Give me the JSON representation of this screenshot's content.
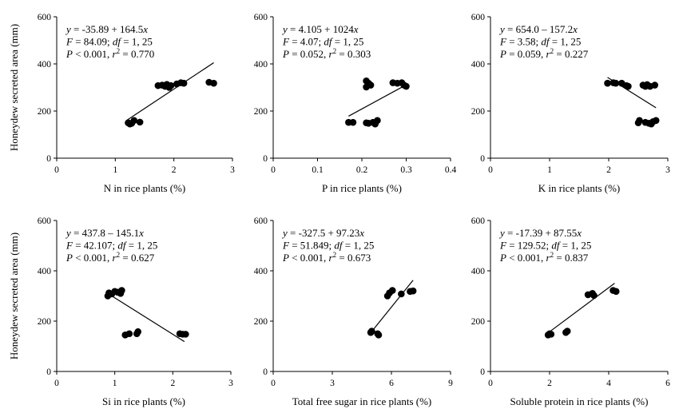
{
  "figure": {
    "ylabel": "Honeydew secreted area (mm)"
  },
  "chart_data": [
    {
      "type": "scatter",
      "xlabel": "N in rice plants (%)",
      "ylabel": "Honeydew secreted area (mm)",
      "xlim": [
        0,
        3
      ],
      "ylim": [
        0,
        600
      ],
      "xticks": [
        "0",
        "1",
        "2",
        "3"
      ],
      "yticks": [
        "0",
        "200",
        "400",
        "600"
      ],
      "annotation": {
        "equation": "-35.89 + 164.5",
        "F": "84.09",
        "df": "1, 25",
        "P": "< 0.001",
        "r2": "0.770"
      },
      "fit": {
        "intercept": -35.89,
        "slope": 164.5,
        "xrange": [
          1.2,
          2.68
        ]
      },
      "points": [
        [
          1.22,
          150
        ],
        [
          1.25,
          145
        ],
        [
          1.28,
          148
        ],
        [
          1.32,
          160
        ],
        [
          1.42,
          153
        ],
        [
          1.73,
          308
        ],
        [
          1.8,
          310
        ],
        [
          1.85,
          305
        ],
        [
          1.88,
          313
        ],
        [
          1.92,
          300
        ],
        [
          1.95,
          308
        ],
        [
          2.05,
          315
        ],
        [
          2.12,
          320
        ],
        [
          2.17,
          318
        ],
        [
          2.6,
          322
        ],
        [
          2.68,
          318
        ]
      ],
      "legend": "none",
      "grid": false
    },
    {
      "type": "scatter",
      "xlabel": "P in rice plants (%)",
      "ylabel": "",
      "xlim": [
        0,
        0.4
      ],
      "ylim": [
        0,
        600
      ],
      "xticks": [
        "0",
        "0.1",
        "0.2",
        "0.3",
        "0.4"
      ],
      "yticks": [
        "0",
        "200",
        "400",
        "600"
      ],
      "annotation": {
        "equation": "4.105 + 1024",
        "F": "4.07",
        "df": "1, 25",
        "P": "0.052",
        "r2": "0.303"
      },
      "fit": {
        "intercept": 4.105,
        "slope": 1024,
        "xrange": [
          0.17,
          0.3
        ]
      },
      "points": [
        [
          0.17,
          152
        ],
        [
          0.18,
          152
        ],
        [
          0.21,
          150
        ],
        [
          0.215,
          148
        ],
        [
          0.225,
          152
        ],
        [
          0.23,
          145
        ],
        [
          0.235,
          160
        ],
        [
          0.21,
          302
        ],
        [
          0.215,
          318
        ],
        [
          0.22,
          310
        ],
        [
          0.21,
          328
        ],
        [
          0.27,
          320
        ],
        [
          0.28,
          318
        ],
        [
          0.29,
          320
        ],
        [
          0.295,
          310
        ],
        [
          0.3,
          305
        ]
      ],
      "legend": "none",
      "grid": false
    },
    {
      "type": "scatter",
      "xlabel": "K in rice plants (%)",
      "ylabel": "",
      "xlim": [
        0,
        3
      ],
      "ylim": [
        0,
        600
      ],
      "xticks": [
        "0",
        "1",
        "2",
        "3"
      ],
      "yticks": [
        "0",
        "200",
        "400",
        "600"
      ],
      "annotation": {
        "equation": "654.0 – 157.2",
        "F": "3.58",
        "df": "1, 25",
        "P": "0.059",
        "r2": "0.227"
      },
      "fit": {
        "intercept": 654.0,
        "slope": -157.2,
        "xrange": [
          1.98,
          2.8
        ]
      },
      "points": [
        [
          1.98,
          318
        ],
        [
          2.08,
          320
        ],
        [
          2.12,
          318
        ],
        [
          2.22,
          318
        ],
        [
          2.3,
          308
        ],
        [
          2.33,
          305
        ],
        [
          2.5,
          150
        ],
        [
          2.52,
          160
        ],
        [
          2.58,
          310
        ],
        [
          2.62,
          305
        ],
        [
          2.65,
          312
        ],
        [
          2.62,
          152
        ],
        [
          2.68,
          148
        ],
        [
          2.7,
          305
        ],
        [
          2.72,
          145
        ],
        [
          2.75,
          155
        ],
        [
          2.78,
          310
        ],
        [
          2.8,
          160
        ]
      ],
      "legend": "none",
      "grid": false
    },
    {
      "type": "scatter",
      "xlabel": "Si in rice plants (%)",
      "ylabel": "Honeydew secreted area (mm)",
      "xlim": [
        0,
        3
      ],
      "ylim": [
        0,
        600
      ],
      "xticks": [
        "0",
        "1",
        "2",
        "3"
      ],
      "yticks": [
        "0",
        "200",
        "400",
        "600"
      ],
      "annotation": {
        "equation": "437.8 – 145.1",
        "F": "42.107",
        "df": "1, 25",
        "P": "< 0.001",
        "r2": "0.627"
      },
      "fit": {
        "intercept": 437.8,
        "slope": -145.1,
        "xrange": [
          0.9,
          2.2
        ]
      },
      "points": [
        [
          0.88,
          300
        ],
        [
          0.9,
          312
        ],
        [
          0.95,
          308
        ],
        [
          1.0,
          318
        ],
        [
          1.05,
          315
        ],
        [
          1.1,
          310
        ],
        [
          1.12,
          322
        ],
        [
          1.18,
          145
        ],
        [
          1.25,
          150
        ],
        [
          1.38,
          150
        ],
        [
          1.4,
          158
        ],
        [
          2.12,
          150
        ],
        [
          2.17,
          148
        ],
        [
          2.22,
          148
        ]
      ],
      "legend": "none",
      "grid": false
    },
    {
      "type": "scatter",
      "xlabel": "Total free sugar in rice plants (%)",
      "ylabel": "",
      "xlim": [
        0,
        9
      ],
      "ylim": [
        0,
        600
      ],
      "xticks": [
        "0",
        "3",
        "6",
        "9"
      ],
      "yticks": [
        "0",
        "200",
        "400",
        "600"
      ],
      "annotation": {
        "equation": "-327.5 + 97.23",
        "F": "51.849",
        "df": "1, 25",
        "P": "< 0.001",
        "r2": "0.673"
      },
      "fit": {
        "intercept": -327.5,
        "slope": 97.23,
        "xrange": [
          5.0,
          7.1
        ]
      },
      "points": [
        [
          4.95,
          155
        ],
        [
          5.0,
          160
        ],
        [
          5.3,
          150
        ],
        [
          5.35,
          145
        ],
        [
          5.8,
          300
        ],
        [
          5.9,
          312
        ],
        [
          6.05,
          322
        ],
        [
          6.5,
          308
        ],
        [
          6.95,
          318
        ],
        [
          7.1,
          320
        ]
      ],
      "legend": "none",
      "grid": false
    },
    {
      "type": "scatter",
      "xlabel": "Soluble protein in rice plants (%)",
      "ylabel": "",
      "xlim": [
        0,
        6
      ],
      "ylim": [
        0,
        600
      ],
      "xticks": [
        "0",
        "2",
        "4",
        "6"
      ],
      "yticks": [
        "0",
        "200",
        "400",
        "600"
      ],
      "annotation": {
        "equation": "-17.39 + 87.55",
        "F": "129.52",
        "df": "1, 25",
        "P": "< 0.001",
        "r2": "0.837"
      },
      "fit": {
        "intercept": -17.39,
        "slope": 87.55,
        "xrange": [
          1.95,
          4.2
        ]
      },
      "points": [
        [
          1.95,
          145
        ],
        [
          2.0,
          150
        ],
        [
          2.05,
          148
        ],
        [
          2.55,
          155
        ],
        [
          2.6,
          160
        ],
        [
          3.3,
          305
        ],
        [
          3.45,
          310
        ],
        [
          3.5,
          302
        ],
        [
          4.15,
          322
        ],
        [
          4.25,
          318
        ]
      ],
      "legend": "none",
      "grid": false
    }
  ]
}
